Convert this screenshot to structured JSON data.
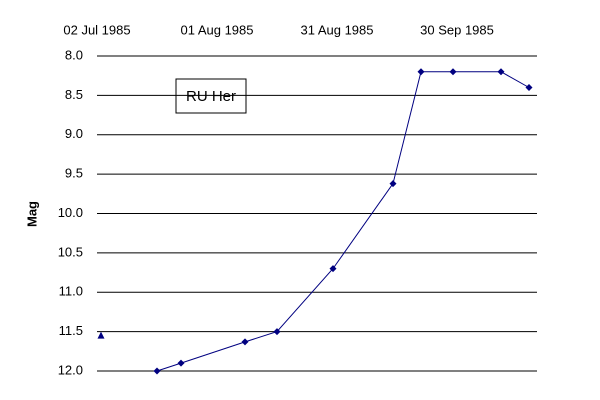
{
  "chart_data": {
    "type": "line",
    "annotation": "RU Her",
    "ylabel": "Mag",
    "x_type": "date",
    "xlim": [
      "1985-07-02",
      "1985-10-20"
    ],
    "xticks": [
      {
        "value": "1985-07-02",
        "label": "02 Jul 1985"
      },
      {
        "value": "1985-08-01",
        "label": "01 Aug 1985"
      },
      {
        "value": "1985-08-31",
        "label": "31 Aug 1985"
      },
      {
        "value": "1985-09-30",
        "label": "30 Sep 1985"
      }
    ],
    "ylim": [
      8.0,
      12.0
    ],
    "y_inverted": true,
    "yticks": [
      {
        "value": 8,
        "label": "8.0"
      },
      8.5,
      {
        "value": 9,
        "label": "9.0"
      },
      9.5,
      {
        "value": 10,
        "label": "10.0"
      },
      10.5,
      {
        "value": 11,
        "label": "11.0"
      },
      11.5,
      {
        "value": 12,
        "label": "12.0"
      }
    ],
    "grid": true,
    "series": [
      {
        "color": "#000080",
        "marker": "triangle",
        "line": false,
        "x": [
          "1985-07-03"
        ],
        "values": [
          11.55
        ]
      },
      {
        "color": "#000080",
        "marker": "diamond",
        "line": true,
        "x": [
          "1985-07-17",
          "1985-07-23",
          "1985-08-08",
          "1985-08-16",
          "1985-08-30",
          "1985-09-14",
          "1985-09-21",
          "1985-09-29",
          "1985-10-11",
          "1985-10-18"
        ],
        "values": [
          12.0,
          11.9,
          11.63,
          11.5,
          10.7,
          9.62,
          8.2,
          8.2,
          8.2,
          8.4
        ]
      }
    ]
  }
}
